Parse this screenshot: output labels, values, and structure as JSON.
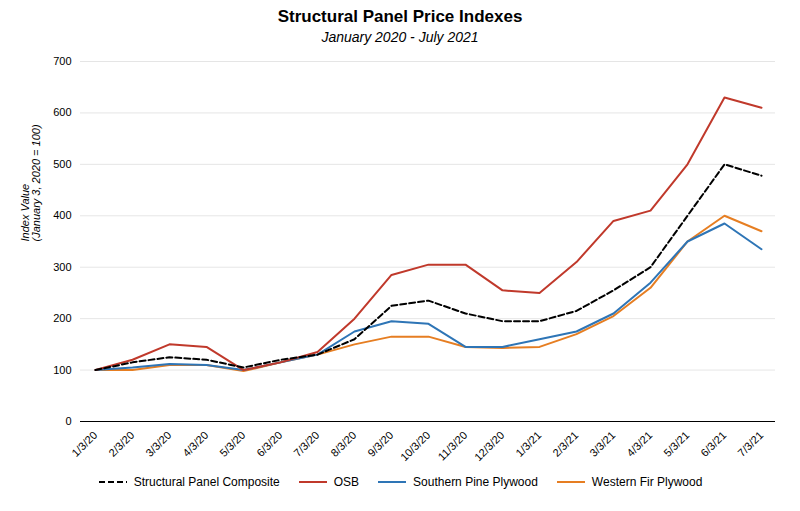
{
  "chart_data": {
    "type": "line",
    "title": "Structural Panel Price Indexes",
    "subtitle": "January 2020 - July 2021",
    "ylabel": "Index Value\n(January 3, 2020 = 100)",
    "categories": [
      "1/3/20",
      "2/3/20",
      "3/3/20",
      "4/3/20",
      "5/3/20",
      "6/3/20",
      "7/3/20",
      "8/3/20",
      "9/3/20",
      "10/3/20",
      "11/3/20",
      "12/3/20",
      "1/3/21",
      "2/3/21",
      "3/3/21",
      "4/3/21",
      "5/3/21",
      "6/3/21",
      "7/3/21"
    ],
    "series": [
      {
        "name": "Structural Panel Composite",
        "color": "#000000",
        "line_style": "dashed",
        "values": [
          100,
          115,
          125,
          120,
          105,
          120,
          130,
          160,
          225,
          235,
          210,
          195,
          195,
          215,
          255,
          300,
          400,
          500,
          478
        ]
      },
      {
        "name": "OSB",
        "color": "#C0392B",
        "line_style": "solid",
        "values": [
          100,
          120,
          150,
          145,
          100,
          115,
          135,
          200,
          285,
          305,
          305,
          255,
          250,
          310,
          390,
          410,
          500,
          630,
          610
        ]
      },
      {
        "name": "Southern Pine Plywood",
        "color": "#2E75B6",
        "line_style": "solid",
        "values": [
          100,
          105,
          112,
          110,
          100,
          115,
          130,
          175,
          195,
          190,
          145,
          145,
          160,
          175,
          210,
          270,
          350,
          385,
          335
        ]
      },
      {
        "name": "Western Fir Plywood",
        "color": "#E67E22",
        "line_style": "solid",
        "values": [
          100,
          100,
          110,
          110,
          98,
          115,
          130,
          150,
          165,
          165,
          145,
          143,
          145,
          170,
          205,
          260,
          350,
          400,
          370
        ]
      }
    ],
    "ylim": [
      0,
      700
    ],
    "yticks": [
      0,
      100,
      200,
      300,
      400,
      500,
      600,
      700
    ],
    "grid": true,
    "legend": "bottom"
  }
}
